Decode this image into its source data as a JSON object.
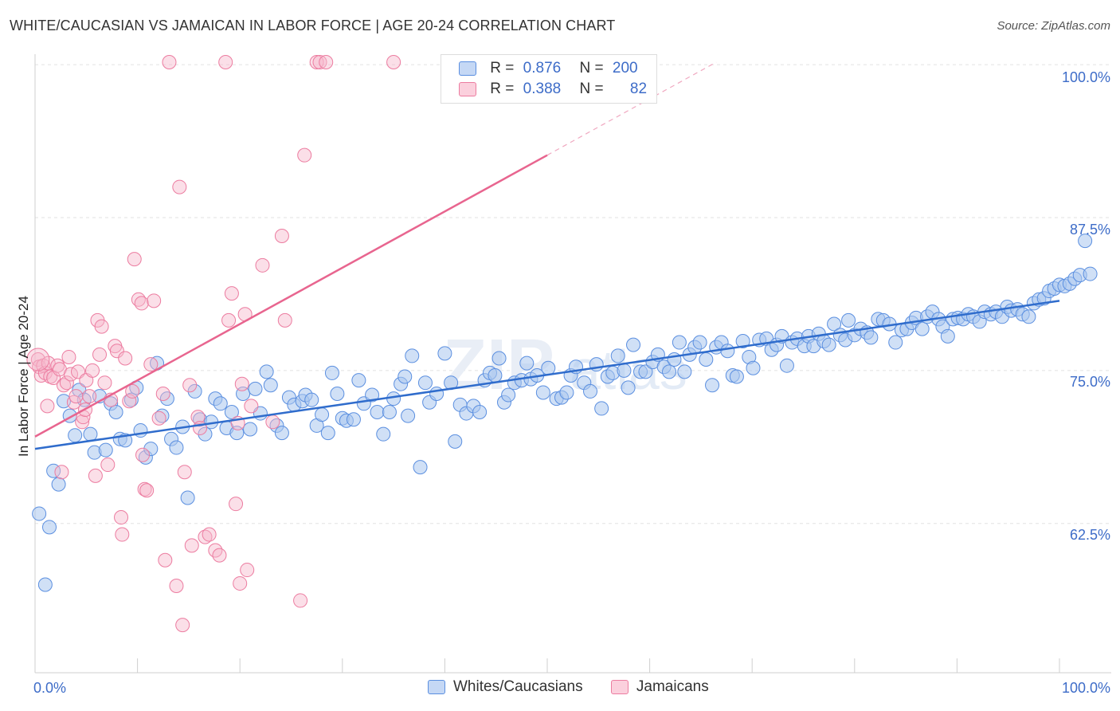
{
  "header": {
    "title": "WHITE/CAUCASIAN VS JAMAICAN IN LABOR FORCE | AGE 20-24 CORRELATION CHART",
    "source": "Source: ZipAtlas.com"
  },
  "legend": {
    "r_label": "R =",
    "n_label": "N =",
    "rows": [
      {
        "r": "0.876",
        "n": "200",
        "color": "#a9c6ef"
      },
      {
        "r": "0.388",
        "n": "82",
        "color": "#f6b8cc"
      }
    ]
  },
  "bottom_legend": {
    "white": "Whites/Caucasians",
    "jamaican": "Jamaicans"
  },
  "axes": {
    "ylabel": "In Labor Force | Age 20-24",
    "yticks": [
      "100.0%",
      "87.5%",
      "75.0%",
      "62.5%"
    ],
    "xmin_label": "0.0%",
    "xmax_label": "100.0%"
  },
  "chart_data": {
    "type": "scatter",
    "title": "WHITE/CAUCASIAN VS JAMAICAN IN LABOR FORCE | AGE 20-24 CORRELATION CHART",
    "xlabel": "",
    "ylabel": "In Labor Force | Age 20-24",
    "xlim": [
      0,
      100
    ],
    "ylim": [
      51,
      101
    ],
    "grid": true,
    "watermark": "ZIPatlas",
    "colors": {
      "white": "#5b8fe0",
      "jamaican": "#ec7ca0",
      "white_line": "#2f6ccc",
      "jamaican_line": "#e8658f"
    },
    "series": [
      {
        "name": "Whites/Caucasians",
        "r": 0.876,
        "n": 200,
        "trend": {
          "x": [
            0,
            100
          ],
          "y": [
            68.6,
            80.7
          ]
        },
        "points": [
          [
            0.4,
            63.3
          ],
          [
            1.0,
            57.5
          ],
          [
            1.4,
            62.2
          ],
          [
            1.8,
            66.8
          ],
          [
            2.3,
            65.7
          ],
          [
            2.8,
            72.5
          ],
          [
            3.4,
            71.3
          ],
          [
            3.9,
            69.7
          ],
          [
            4.3,
            73.4
          ],
          [
            4.8,
            72.6
          ],
          [
            5.4,
            69.8
          ],
          [
            5.8,
            68.3
          ],
          [
            6.3,
            72.9
          ],
          [
            6.9,
            68.5
          ],
          [
            7.4,
            72.3
          ],
          [
            7.9,
            71.6
          ],
          [
            8.3,
            69.4
          ],
          [
            8.8,
            69.3
          ],
          [
            9.4,
            72.6
          ],
          [
            9.9,
            73.6
          ],
          [
            10.3,
            70.1
          ],
          [
            10.8,
            67.9
          ],
          [
            11.3,
            68.6
          ],
          [
            11.9,
            75.6
          ],
          [
            12.4,
            71.3
          ],
          [
            12.9,
            72.7
          ],
          [
            13.3,
            69.4
          ],
          [
            13.8,
            68.7
          ],
          [
            14.4,
            70.4
          ],
          [
            14.9,
            64.6
          ],
          [
            15.6,
            73.3
          ],
          [
            16.1,
            71.0
          ],
          [
            16.6,
            69.8
          ],
          [
            17.2,
            70.8
          ],
          [
            17.6,
            72.7
          ],
          [
            18.1,
            72.3
          ],
          [
            18.7,
            70.3
          ],
          [
            19.2,
            71.6
          ],
          [
            19.7,
            69.9
          ],
          [
            20.3,
            73.1
          ],
          [
            21.0,
            70.2
          ],
          [
            21.5,
            73.5
          ],
          [
            22.0,
            71.5
          ],
          [
            22.6,
            74.9
          ],
          [
            23.0,
            73.8
          ],
          [
            23.6,
            70.5
          ],
          [
            24.1,
            69.9
          ],
          [
            24.8,
            72.8
          ],
          [
            25.3,
            72.2
          ],
          [
            26.1,
            72.5
          ],
          [
            26.4,
            73.0
          ],
          [
            27.0,
            72.6
          ],
          [
            27.5,
            70.5
          ],
          [
            28.0,
            71.4
          ],
          [
            28.6,
            69.9
          ],
          [
            29.0,
            74.8
          ],
          [
            29.5,
            73.1
          ],
          [
            30.0,
            71.1
          ],
          [
            30.4,
            70.9
          ],
          [
            31.1,
            71.0
          ],
          [
            31.6,
            74.2
          ],
          [
            32.1,
            72.3
          ],
          [
            32.9,
            73.0
          ],
          [
            33.4,
            71.6
          ],
          [
            34.0,
            69.8
          ],
          [
            34.6,
            71.6
          ],
          [
            35.0,
            72.7
          ],
          [
            35.7,
            73.9
          ],
          [
            36.1,
            74.5
          ],
          [
            36.4,
            71.3
          ],
          [
            36.8,
            76.2
          ],
          [
            37.6,
            67.1
          ],
          [
            38.1,
            74.0
          ],
          [
            38.5,
            72.4
          ],
          [
            39.2,
            73.1
          ],
          [
            40.0,
            76.4
          ],
          [
            40.6,
            74.0
          ],
          [
            41.0,
            69.2
          ],
          [
            41.5,
            72.2
          ],
          [
            42.1,
            71.5
          ],
          [
            42.8,
            72.1
          ],
          [
            43.4,
            71.6
          ],
          [
            43.9,
            74.2
          ],
          [
            44.4,
            74.8
          ],
          [
            44.9,
            74.6
          ],
          [
            45.3,
            76.0
          ],
          [
            45.8,
            72.4
          ],
          [
            46.2,
            73.0
          ],
          [
            46.8,
            74.0
          ],
          [
            47.5,
            74.2
          ],
          [
            48.0,
            75.6
          ],
          [
            48.4,
            74.3
          ],
          [
            49.0,
            74.6
          ],
          [
            49.6,
            73.2
          ],
          [
            50.1,
            75.2
          ],
          [
            50.9,
            72.7
          ],
          [
            51.4,
            72.8
          ],
          [
            51.9,
            73.2
          ],
          [
            52.3,
            74.6
          ],
          [
            52.8,
            75.3
          ],
          [
            53.6,
            74.0
          ],
          [
            54.2,
            73.3
          ],
          [
            54.8,
            75.5
          ],
          [
            55.3,
            71.9
          ],
          [
            55.9,
            74.5
          ],
          [
            56.4,
            74.8
          ],
          [
            56.9,
            76.2
          ],
          [
            57.5,
            75.0
          ],
          [
            57.9,
            73.6
          ],
          [
            58.4,
            77.1
          ],
          [
            59.1,
            74.9
          ],
          [
            59.6,
            74.9
          ],
          [
            60.3,
            75.7
          ],
          [
            60.8,
            76.3
          ],
          [
            61.4,
            75.3
          ],
          [
            61.9,
            74.9
          ],
          [
            62.4,
            75.9
          ],
          [
            62.9,
            77.3
          ],
          [
            63.4,
            74.9
          ],
          [
            63.9,
            76.3
          ],
          [
            64.4,
            76.9
          ],
          [
            64.9,
            77.3
          ],
          [
            65.5,
            75.9
          ],
          [
            66.1,
            73.8
          ],
          [
            66.5,
            76.9
          ],
          [
            67.0,
            77.3
          ],
          [
            67.6,
            76.6
          ],
          [
            68.1,
            74.6
          ],
          [
            68.5,
            74.5
          ],
          [
            69.1,
            77.4
          ],
          [
            69.7,
            76.1
          ],
          [
            70.1,
            75.2
          ],
          [
            70.7,
            77.5
          ],
          [
            71.4,
            77.6
          ],
          [
            71.9,
            76.7
          ],
          [
            72.4,
            77.1
          ],
          [
            72.9,
            77.8
          ],
          [
            73.4,
            75.4
          ],
          [
            73.9,
            77.3
          ],
          [
            74.4,
            77.6
          ],
          [
            75.1,
            77.0
          ],
          [
            75.5,
            77.8
          ],
          [
            76.0,
            77.0
          ],
          [
            76.5,
            78.0
          ],
          [
            77.0,
            77.4
          ],
          [
            77.5,
            77.1
          ],
          [
            78.0,
            78.8
          ],
          [
            78.6,
            77.9
          ],
          [
            79.1,
            77.5
          ],
          [
            79.4,
            79.1
          ],
          [
            80.0,
            77.9
          ],
          [
            80.6,
            78.4
          ],
          [
            81.2,
            78.1
          ],
          [
            81.6,
            77.7
          ],
          [
            82.3,
            79.2
          ],
          [
            82.8,
            79.1
          ],
          [
            83.4,
            78.8
          ],
          [
            84.0,
            77.3
          ],
          [
            84.6,
            78.3
          ],
          [
            85.1,
            78.4
          ],
          [
            85.6,
            78.9
          ],
          [
            86.0,
            79.3
          ],
          [
            86.6,
            78.4
          ],
          [
            87.1,
            79.4
          ],
          [
            87.6,
            79.8
          ],
          [
            88.2,
            79.2
          ],
          [
            88.6,
            78.6
          ],
          [
            89.1,
            77.8
          ],
          [
            89.6,
            79.2
          ],
          [
            90.1,
            79.3
          ],
          [
            90.6,
            79.2
          ],
          [
            91.1,
            79.6
          ],
          [
            91.6,
            79.4
          ],
          [
            92.2,
            79.0
          ],
          [
            92.7,
            79.8
          ],
          [
            93.3,
            79.6
          ],
          [
            93.8,
            79.8
          ],
          [
            94.4,
            79.4
          ],
          [
            94.9,
            80.2
          ],
          [
            95.3,
            79.9
          ],
          [
            95.9,
            80.0
          ],
          [
            96.4,
            79.6
          ],
          [
            97.0,
            79.4
          ],
          [
            97.5,
            80.5
          ],
          [
            98.0,
            80.8
          ],
          [
            98.5,
            80.9
          ],
          [
            99.0,
            81.5
          ],
          [
            99.5,
            81.7
          ],
          [
            100.0,
            82.0
          ],
          [
            100.5,
            81.9
          ],
          [
            101.0,
            82.1
          ],
          [
            101.5,
            82.5
          ],
          [
            102.0,
            82.8
          ],
          [
            102.5,
            85.6
          ],
          [
            103.0,
            82.9
          ]
        ]
      },
      {
        "name": "Jamaicans",
        "r": 0.388,
        "n": 82,
        "trend": {
          "x": [
            0,
            50
          ],
          "y": [
            69.6,
            92.6
          ]
        },
        "trend_extension": {
          "x": [
            50,
            66.5
          ],
          "y": [
            92.6,
            100.2
          ]
        },
        "points": [
          [
            0.3,
            75.9
          ],
          [
            0.4,
            75.3
          ],
          [
            0.6,
            74.6
          ],
          [
            0.8,
            75.4
          ],
          [
            1.0,
            74.8
          ],
          [
            1.2,
            72.1
          ],
          [
            1.3,
            75.6
          ],
          [
            1.5,
            74.5
          ],
          [
            1.8,
            74.4
          ],
          [
            2.2,
            75.4
          ],
          [
            2.4,
            75.1
          ],
          [
            2.6,
            66.7
          ],
          [
            2.8,
            73.8
          ],
          [
            3.1,
            74.0
          ],
          [
            3.3,
            76.1
          ],
          [
            3.5,
            74.7
          ],
          [
            3.8,
            72.4
          ],
          [
            4.0,
            72.9
          ],
          [
            4.2,
            74.9
          ],
          [
            4.6,
            70.8
          ],
          [
            4.7,
            71.2
          ],
          [
            4.9,
            71.8
          ],
          [
            5.0,
            74.2
          ],
          [
            5.3,
            72.9
          ],
          [
            5.6,
            75.0
          ],
          [
            5.9,
            66.4
          ],
          [
            6.1,
            79.1
          ],
          [
            6.3,
            76.3
          ],
          [
            6.5,
            78.6
          ],
          [
            6.8,
            74.0
          ],
          [
            7.1,
            67.3
          ],
          [
            7.4,
            72.6
          ],
          [
            7.8,
            77.0
          ],
          [
            8.0,
            76.6
          ],
          [
            8.4,
            63.0
          ],
          [
            8.5,
            61.6
          ],
          [
            8.8,
            76.0
          ],
          [
            9.2,
            72.5
          ],
          [
            9.5,
            73.3
          ],
          [
            9.7,
            84.1
          ],
          [
            10.1,
            80.8
          ],
          [
            10.4,
            80.5
          ],
          [
            10.5,
            68.1
          ],
          [
            10.7,
            65.3
          ],
          [
            10.9,
            65.2
          ],
          [
            11.3,
            75.5
          ],
          [
            11.6,
            80.7
          ],
          [
            12.1,
            71.1
          ],
          [
            12.5,
            73.1
          ],
          [
            12.7,
            59.5
          ],
          [
            13.1,
            100.2
          ],
          [
            13.8,
            57.4
          ],
          [
            14.1,
            90.0
          ],
          [
            14.4,
            54.2
          ],
          [
            14.6,
            66.7
          ],
          [
            15.1,
            73.8
          ],
          [
            15.3,
            60.7
          ],
          [
            15.9,
            71.2
          ],
          [
            16.1,
            70.3
          ],
          [
            16.6,
            61.4
          ],
          [
            17.0,
            61.6
          ],
          [
            17.6,
            60.3
          ],
          [
            18.0,
            59.9
          ],
          [
            18.6,
            100.2
          ],
          [
            18.9,
            79.1
          ],
          [
            19.2,
            81.3
          ],
          [
            19.6,
            64.1
          ],
          [
            19.8,
            70.7
          ],
          [
            20.0,
            57.6
          ],
          [
            20.2,
            73.9
          ],
          [
            20.5,
            79.6
          ],
          [
            20.7,
            58.7
          ],
          [
            21.1,
            72.1
          ],
          [
            22.2,
            83.6
          ],
          [
            23.2,
            70.8
          ],
          [
            24.1,
            86.0
          ],
          [
            24.4,
            79.1
          ],
          [
            25.9,
            56.2
          ],
          [
            26.3,
            92.6
          ],
          [
            27.5,
            100.2
          ],
          [
            27.8,
            100.2
          ],
          [
            28.4,
            100.2
          ],
          [
            35.0,
            100.2
          ]
        ]
      }
    ]
  }
}
